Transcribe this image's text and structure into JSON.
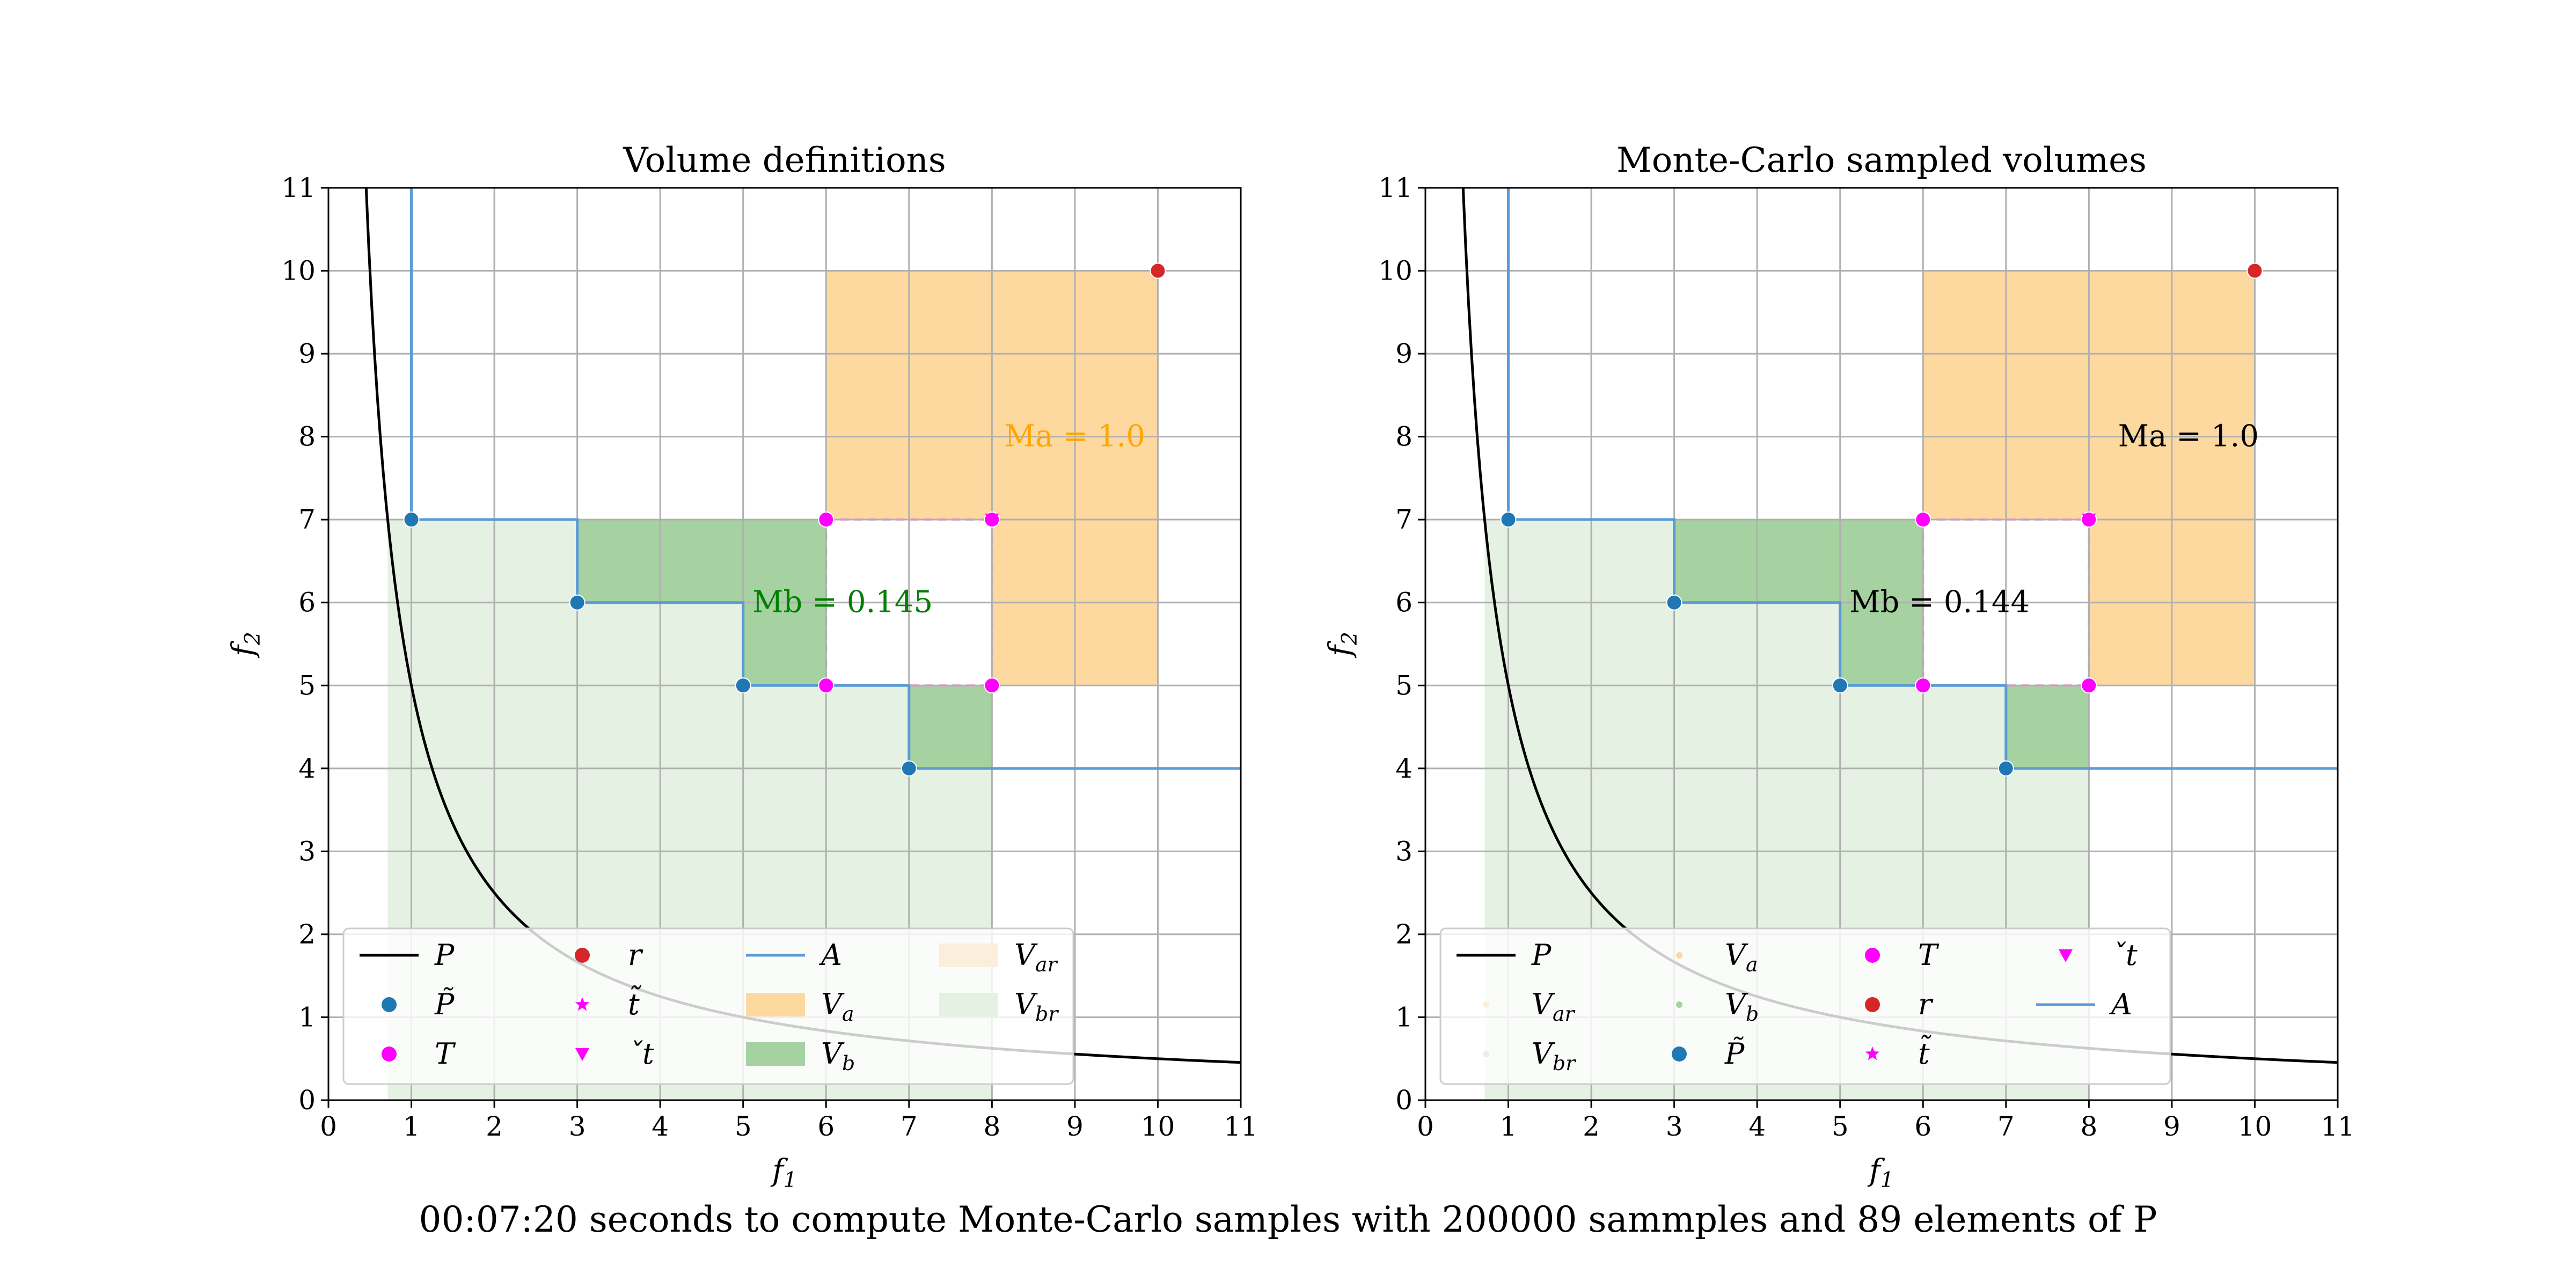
{
  "caption": "00:07:20 seconds to compute Monte-Carlo samples with 200000 sammples and 89 elements of P",
  "colors": {
    "pareto_front": "#000000",
    "approx_points": "#1f77b4",
    "attainment": "#5b9bd5",
    "targets": "#ff00ff",
    "reference": "#d62728",
    "v_a": "#fdd9a0",
    "v_b": "#a5d2a0",
    "v_ar": "#fbefdc",
    "v_br": "#e5f1e3",
    "annot_left_a": "#ffa500",
    "annot_left_b": "#008000",
    "grid": "#b0b0b0"
  },
  "chart_data": [
    {
      "type": "scatter",
      "title": "Volume definitions",
      "xlabel": "f1",
      "ylabel": "f2",
      "xlim": [
        0,
        11
      ],
      "ylim": [
        0,
        11
      ],
      "xticks": [
        "0",
        "1",
        "2",
        "3",
        "4",
        "5",
        "6",
        "7",
        "8",
        "9",
        "10",
        "11"
      ],
      "yticks": [
        "0",
        "1",
        "2",
        "3",
        "4",
        "5",
        "6",
        "7",
        "8",
        "9",
        "10",
        "11"
      ],
      "grid": true,
      "legend_placement": "lower-left",
      "annotations": [
        {
          "text": "Ma = 1.0",
          "x": 9.0,
          "y": 8.0,
          "color_key": "annot_left_a"
        },
        {
          "text": "Mb = 0.145",
          "x": 6.2,
          "y": 6.0,
          "color_key": "annot_left_b"
        }
      ],
      "pareto_front": {
        "name": "P",
        "function": "f2 = 5 / f1",
        "x_range": [
          0.45,
          11
        ]
      },
      "approximation_points": {
        "name": "P̃",
        "x": [
          1,
          3,
          5,
          7
        ],
        "y": [
          7,
          6,
          5,
          4
        ]
      },
      "attainment_front": {
        "name": "A",
        "x": [
          1,
          1,
          3,
          3,
          5,
          5,
          7,
          7,
          11
        ],
        "y": [
          11,
          7,
          7,
          6,
          6,
          5,
          5,
          4,
          4
        ]
      },
      "target_points": {
        "name": "T",
        "x": [
          6,
          8,
          6,
          8
        ],
        "y": [
          7,
          7,
          5,
          5
        ]
      },
      "target_ideal": {
        "name": "t̃",
        "x": [
          6
        ],
        "y": [
          5
        ]
      },
      "target_nadir": {
        "name": "ˇt",
        "x": [
          8
        ],
        "y": [
          7
        ]
      },
      "reference_point": {
        "name": "r",
        "x": [
          10
        ],
        "y": [
          10
        ]
      },
      "volumes": {
        "V_a": {
          "name": "Va",
          "regions": [
            [
              6,
              7,
              10,
              10
            ],
            [
              8,
              5,
              10,
              7
            ]
          ]
        },
        "V_b": {
          "name": "Vb",
          "regions": [
            [
              3,
              6,
              6,
              7
            ],
            [
              5,
              5,
              6,
              6
            ],
            [
              7,
              4,
              8,
              5
            ]
          ]
        },
        "V_ar": {
          "name": "Var",
          "regions": []
        },
        "V_br": {
          "name": "Vbr",
          "function": "f2 = 5 / f1",
          "x_range": [
            0.714,
            8
          ]
        }
      },
      "legend": [
        {
          "key": "pareto_front",
          "label": "P"
        },
        {
          "key": "approximation_points",
          "label": "P̃"
        },
        {
          "key": "target_points",
          "label": "T"
        },
        {
          "key": "reference_point",
          "label": "r"
        },
        {
          "key": "target_ideal",
          "label": "t̃"
        },
        {
          "key": "target_nadir",
          "label": "ˇt"
        },
        {
          "key": "attainment_front",
          "label": "A"
        },
        {
          "key": "V_a",
          "label": "Va"
        },
        {
          "key": "V_b",
          "label": "Vb"
        },
        {
          "key": "V_ar",
          "label": "Var"
        },
        {
          "key": "V_br",
          "label": "Vbr"
        }
      ]
    },
    {
      "type": "scatter",
      "title": "Monte-Carlo sampled volumes",
      "xlabel": "f1",
      "ylabel": "f2",
      "xlim": [
        0,
        11
      ],
      "ylim": [
        0,
        11
      ],
      "xticks": [
        "0",
        "1",
        "2",
        "3",
        "4",
        "5",
        "6",
        "7",
        "8",
        "9",
        "10",
        "11"
      ],
      "yticks": [
        "0",
        "1",
        "2",
        "3",
        "4",
        "5",
        "6",
        "7",
        "8",
        "9",
        "10",
        "11"
      ],
      "grid": true,
      "legend_placement": "lower-left",
      "annotations": [
        {
          "text": "Ma = 1.0",
          "x": 9.2,
          "y": 8.0,
          "color_key": "pareto_front"
        },
        {
          "text": "Mb = 0.144",
          "x": 6.2,
          "y": 6.0,
          "color_key": "pareto_front"
        }
      ],
      "pareto_front": {
        "name": "P",
        "function": "f2 = 5 / f1",
        "x_range": [
          0.45,
          11
        ]
      },
      "approximation_points": {
        "name": "P̃",
        "x": [
          1,
          3,
          5,
          7
        ],
        "y": [
          7,
          6,
          5,
          4
        ]
      },
      "attainment_front": {
        "name": "A",
        "x": [
          1,
          1,
          3,
          3,
          5,
          5,
          7,
          7,
          11
        ],
        "y": [
          11,
          7,
          7,
          6,
          6,
          5,
          5,
          4,
          4
        ]
      },
      "target_points": {
        "name": "T",
        "x": [
          6,
          8,
          6,
          8
        ],
        "y": [
          7,
          7,
          5,
          5
        ]
      },
      "target_ideal": {
        "name": "t̃",
        "x": [
          6
        ],
        "y": [
          5
        ]
      },
      "target_nadir": {
        "name": "ˇt",
        "x": [
          8
        ],
        "y": [
          7
        ]
      },
      "reference_point": {
        "name": "r",
        "x": [
          10
        ],
        "y": [
          10
        ]
      },
      "volumes": {
        "V_a": {
          "name": "Va",
          "regions": [
            [
              6,
              7,
              10,
              10
            ],
            [
              8,
              5,
              10,
              7
            ]
          ]
        },
        "V_b": {
          "name": "Vb",
          "regions": [
            [
              3,
              6,
              6,
              7
            ],
            [
              5,
              5,
              6,
              6
            ],
            [
              7,
              4,
              8,
              5
            ]
          ]
        },
        "V_ar": {
          "name": "Var",
          "regions": []
        },
        "V_br": {
          "name": "Vbr",
          "function": "f2 = 5 / f1",
          "x_range": [
            0.714,
            8
          ]
        }
      },
      "legend": [
        {
          "key": "pareto_front",
          "label": "P"
        },
        {
          "key": "V_ar",
          "label": "Var"
        },
        {
          "key": "V_br",
          "label": "Vbr"
        },
        {
          "key": "V_a",
          "label": "Va"
        },
        {
          "key": "V_b",
          "label": "Vb"
        },
        {
          "key": "approximation_points",
          "label": "P̃"
        },
        {
          "key": "target_points",
          "label": "T"
        },
        {
          "key": "reference_point",
          "label": "r"
        },
        {
          "key": "target_ideal",
          "label": "t̃"
        },
        {
          "key": "target_nadir",
          "label": "ˇt"
        },
        {
          "key": "attainment_front",
          "label": "A"
        }
      ]
    }
  ]
}
